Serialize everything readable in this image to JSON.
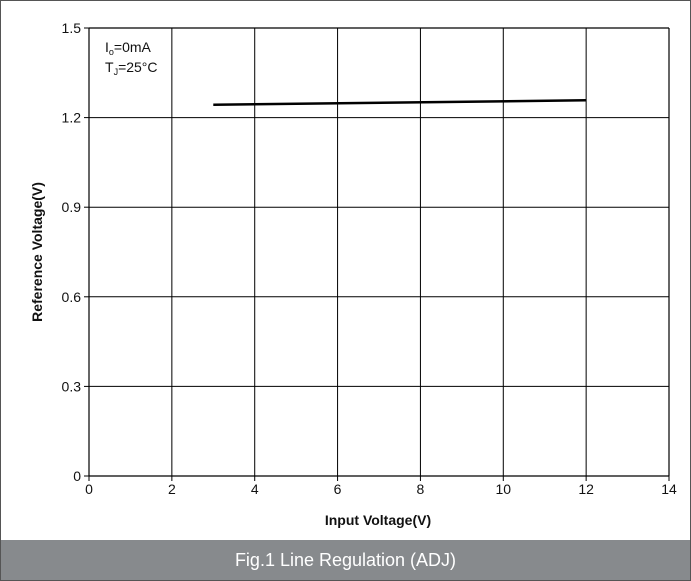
{
  "chart_data": {
    "type": "line",
    "caption": "Fig.1 Line Regulation (ADJ)",
    "xlabel": "Input Voltage(V)",
    "ylabel": "Reference Voltage(V)",
    "xlim": [
      0,
      14
    ],
    "ylim": [
      0,
      1.5
    ],
    "xticks": [
      0,
      2,
      4,
      6,
      8,
      10,
      12,
      14
    ],
    "yticks": [
      0,
      0.3,
      0.6,
      0.9,
      1.2,
      1.5
    ],
    "xtick_labels": [
      "0",
      "2",
      "4",
      "6",
      "8",
      "10",
      "12",
      "14"
    ],
    "ytick_labels": [
      "0",
      "0.3",
      "0.6",
      "0.9",
      "1.2",
      "1.5"
    ],
    "grid": true,
    "annotation": {
      "line1_main": "I",
      "line1_sub": "o",
      "line1_rest": "=0mA",
      "line2_main": "T",
      "line2_sub": "J",
      "line2_rest": "=25°C"
    },
    "series": [
      {
        "x": [
          3,
          12
        ],
        "y": [
          1.243,
          1.258
        ],
        "color": "#000000"
      }
    ]
  },
  "colors": {
    "caption_bg": "#878a8d",
    "grid": "#000000",
    "line": "#000000"
  }
}
